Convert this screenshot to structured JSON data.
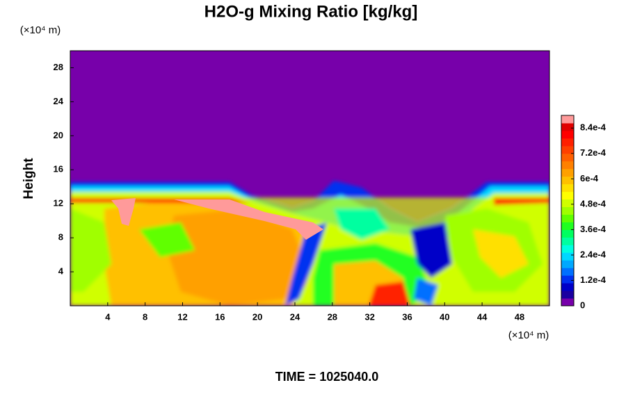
{
  "chart_data": {
    "type": "heatmap",
    "title": "H2O-g Mixing Ratio [kg/kg]",
    "y_label": "Height",
    "y_unit": "(×10⁴ m)",
    "x_unit": "(×10⁴ m)",
    "footer": "TIME = 1025040.0",
    "xlim": [
      0,
      51.2
    ],
    "xticks": [
      4,
      8,
      12,
      16,
      20,
      24,
      28,
      32,
      36,
      40,
      44,
      48
    ],
    "ylim": [
      0,
      30
    ],
    "yticks": [
      4,
      8,
      12,
      16,
      20,
      24,
      28
    ],
    "colorbar": {
      "lim": [
        0,
        0.0009
      ],
      "ticks": [
        0,
        {
          "value": 0.00012,
          "label": "1.2e-4"
        },
        {
          "value": 0.00024,
          "label": "2.4e-4"
        },
        {
          "value": 0.00036,
          "label": "3.6e-4"
        },
        {
          "value": 0.00048,
          "label": "4.8e-4"
        },
        {
          "value": 0.0006,
          "label": "6e-4"
        },
        {
          "value": 0.00072,
          "label": "7.2e-4"
        },
        {
          "value": 0.00084,
          "label": "8.4e-4"
        }
      ],
      "colors": [
        "#7700aa",
        "#1a00a0",
        "#0000c8",
        "#0030f0",
        "#0070ff",
        "#00a8ff",
        "#00d8ff",
        "#00ffe0",
        "#00ffa0",
        "#00ff60",
        "#20ff20",
        "#60ff00",
        "#a0ff00",
        "#d0ff00",
        "#ffff00",
        "#ffe000",
        "#ffc000",
        "#ffa000",
        "#ff8000",
        "#ff6000",
        "#ff4000",
        "#ff2000",
        "#ff0000",
        "#e00000",
        "#ff9a9a"
      ]
    }
  }
}
